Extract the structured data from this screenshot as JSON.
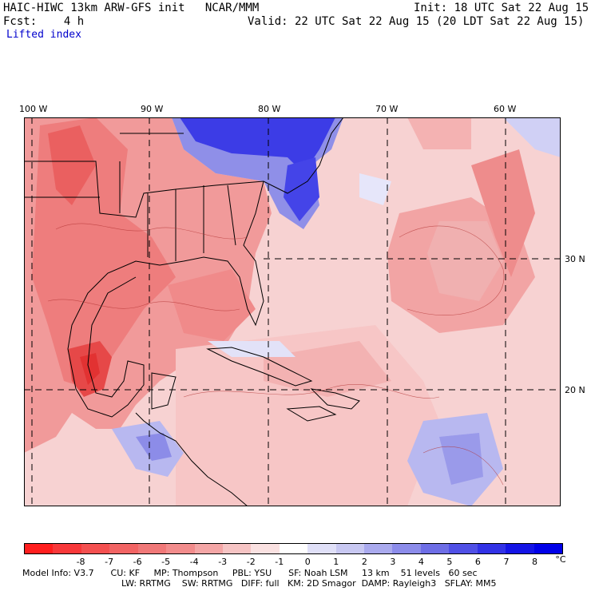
{
  "header": {
    "left_line1": "HAIC-HIWC 13km ARW-GFS init   NCAR/MMM",
    "right_line1": "Init: 18 UTC Sat 22 Aug 15",
    "left_line2": "Fcst:    4 h",
    "right_line2": "Valid: 22 UTC Sat 22 Aug 15 (20 LDT Sat 22 Aug 15)",
    "field": "Lifted index"
  },
  "map": {
    "lon_labels": [
      "100 W",
      "90 W",
      "80 W",
      "70 W",
      "60 W"
    ],
    "lat_labels": [
      "30 N",
      "20 N"
    ],
    "colors": {
      "strong_negative": "#e83c3c",
      "negative": "#f08080",
      "weak_negative": "#f9c8c8",
      "positive": "#c8c8f5",
      "strong_positive": "#2828e0"
    }
  },
  "colorbar": {
    "labels": [
      "-8",
      "-7",
      "-6",
      "-5",
      "-4",
      "-3",
      "-2",
      "-1",
      "0",
      "1",
      "2",
      "3",
      "4",
      "5",
      "6",
      "7",
      "8"
    ],
    "unit": "°C",
    "colors": [
      "#ff1e1e",
      "#f8383a",
      "#f45050",
      "#f26464",
      "#f07878",
      "#f28c8c",
      "#f4a6a6",
      "#f6c4c4",
      "#fae1e1",
      "#ffffff",
      "#e0e0f8",
      "#c8c8f2",
      "#aaaaee",
      "#8c8cea",
      "#6e6ee6",
      "#5050e6",
      "#3232e6",
      "#1414e6",
      "#0000e8"
    ]
  },
  "model_info": {
    "line1": "Model Info: V3.7      CU: KF     MP: Thompson     PBL: YSU      SF: Noah LSM     13 km    51 levels   60 sec",
    "line2": "LW: RRTMG    SW: RRTMG   DIFF: full   KM: 2D Smagor  DAMP: Rayleigh3   SFLAY: MM5"
  }
}
